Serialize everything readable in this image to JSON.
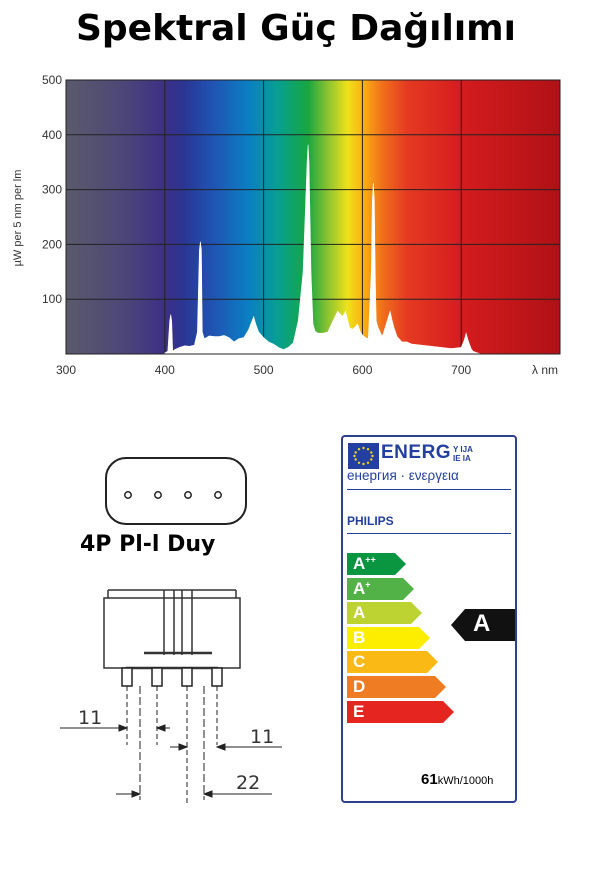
{
  "title": "Spektral Güç Dağılımı",
  "chart_data": {
    "type": "line",
    "title": "",
    "xlabel": "λ nm",
    "ylabel": "µW per 5 nm per lm",
    "xlim": [
      300,
      800
    ],
    "ylim": [
      0,
      500
    ],
    "x_ticks": [
      300,
      400,
      500,
      600,
      700
    ],
    "y_ticks": [
      100,
      200,
      300,
      400,
      500
    ],
    "grid": true,
    "background": "visible spectrum gradient",
    "series": [
      {
        "x": [
          400,
          403,
          405,
          406,
          407,
          408,
          410,
          415,
          420,
          425,
          430,
          433,
          435,
          436,
          437,
          438,
          440,
          445,
          450,
          455,
          460,
          465,
          470,
          475,
          480,
          485,
          487,
          490,
          492,
          495,
          500,
          505,
          510,
          515,
          520,
          525,
          530,
          535,
          540,
          542,
          544,
          545,
          546,
          547,
          548,
          550,
          552,
          555,
          560,
          565,
          570,
          575,
          580,
          583,
          585,
          587,
          590,
          593,
          595,
          598,
          600,
          603,
          606,
          609,
          610,
          611,
          612,
          613,
          614,
          616,
          618,
          620,
          623,
          625,
          628,
          630,
          632,
          635,
          640,
          645,
          650,
          660,
          670,
          680,
          690,
          700,
          703,
          705,
          707,
          710,
          712,
          715,
          720
        ],
        "y": [
          2,
          5,
          60,
          72,
          60,
          5,
          8,
          12,
          15,
          14,
          16,
          40,
          190,
          205,
          190,
          40,
          28,
          33,
          32,
          32,
          34,
          30,
          22,
          28,
          30,
          45,
          55,
          68,
          55,
          40,
          30,
          22,
          18,
          12,
          8,
          12,
          20,
          60,
          150,
          250,
          350,
          382,
          350,
          250,
          150,
          55,
          42,
          38,
          38,
          40,
          60,
          78,
          68,
          78,
          62,
          48,
          45,
          50,
          55,
          40,
          35,
          30,
          28,
          150,
          280,
          312,
          280,
          150,
          60,
          48,
          40,
          32,
          48,
          60,
          78,
          62,
          48,
          32,
          22,
          22,
          18,
          16,
          14,
          12,
          10,
          12,
          25,
          38,
          25,
          10,
          5,
          3,
          0
        ]
      }
    ]
  },
  "connector": {
    "label": "4P Pl-l Duy",
    "dims": [
      "11",
      "11",
      "22"
    ]
  },
  "energy_label": {
    "energ": "ENERG",
    "suffix_lines": [
      "Y IJA",
      "IE IA"
    ],
    "subline": "енергия · ενεργεια",
    "brand": "PHILIPS",
    "classes": [
      {
        "label": "A",
        "sup": "++",
        "color": "#0a9640"
      },
      {
        "label": "A",
        "sup": "+",
        "color": "#52b248"
      },
      {
        "label": "A",
        "sup": "",
        "color": "#bdd331"
      },
      {
        "label": "B",
        "sup": "",
        "color": "#fdee00"
      },
      {
        "label": "C",
        "sup": "",
        "color": "#fbb916"
      },
      {
        "label": "D",
        "sup": "",
        "color": "#ef7c22"
      },
      {
        "label": "E",
        "sup": "",
        "color": "#e52520"
      }
    ],
    "rating": "A",
    "rating_color": "#111111",
    "consumption_value": "61",
    "consumption_unit": "kWh/1000h"
  }
}
